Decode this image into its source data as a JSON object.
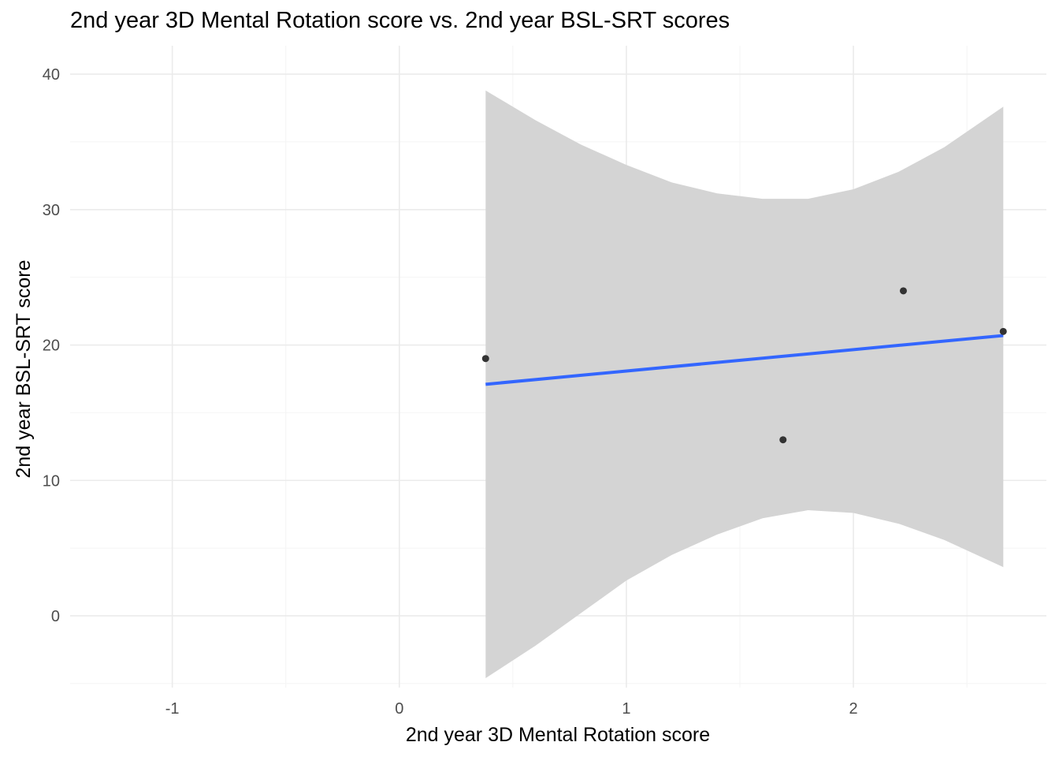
{
  "chart_data": {
    "type": "scatter",
    "title": "2nd year 3D Mental Rotation score vs. 2nd year BSL-SRT scores",
    "xlabel": "2nd year 3D Mental Rotation score",
    "ylabel": "2nd year BSL-SRT score",
    "xlim": [
      -1.45,
      2.85
    ],
    "ylim": [
      -5.3,
      42.1
    ],
    "x_ticks": [
      -1,
      0,
      1,
      2
    ],
    "x_tick_labels": [
      "-1",
      "0",
      "1",
      "2"
    ],
    "y_ticks": [
      0,
      10,
      20,
      30,
      40
    ],
    "y_tick_labels": [
      "0",
      "10",
      "20",
      "30",
      "40"
    ],
    "grid": true,
    "points": [
      {
        "x": 0.38,
        "y": 19
      },
      {
        "x": 1.69,
        "y": 13
      },
      {
        "x": 2.22,
        "y": 24
      },
      {
        "x": 2.66,
        "y": 21
      }
    ],
    "regression": {
      "method": "linear",
      "line": [
        [
          0.38,
          17.1
        ],
        [
          2.66,
          20.7
        ]
      ],
      "confidence_band": [
        {
          "x": 0.38,
          "upper": 38.8,
          "lower": -4.6
        },
        {
          "x": 0.6,
          "upper": 36.6,
          "lower": -2.2
        },
        {
          "x": 0.8,
          "upper": 34.8,
          "lower": 0.2
        },
        {
          "x": 1.0,
          "upper": 33.3,
          "lower": 2.6
        },
        {
          "x": 1.2,
          "upper": 32.0,
          "lower": 4.5
        },
        {
          "x": 1.4,
          "upper": 31.2,
          "lower": 6.0
        },
        {
          "x": 1.6,
          "upper": 30.8,
          "lower": 7.2
        },
        {
          "x": 1.8,
          "upper": 30.8,
          "lower": 7.8
        },
        {
          "x": 2.0,
          "upper": 31.5,
          "lower": 7.6
        },
        {
          "x": 2.2,
          "upper": 32.8,
          "lower": 6.8
        },
        {
          "x": 2.4,
          "upper": 34.6,
          "lower": 5.6
        },
        {
          "x": 2.66,
          "upper": 37.6,
          "lower": 3.6
        }
      ]
    },
    "colors": {
      "point": "#333333",
      "line": "#3366ff",
      "band": "#d4d4d4",
      "grid_major": "#ebebeb",
      "grid_minor": "#f4f4f4"
    }
  }
}
